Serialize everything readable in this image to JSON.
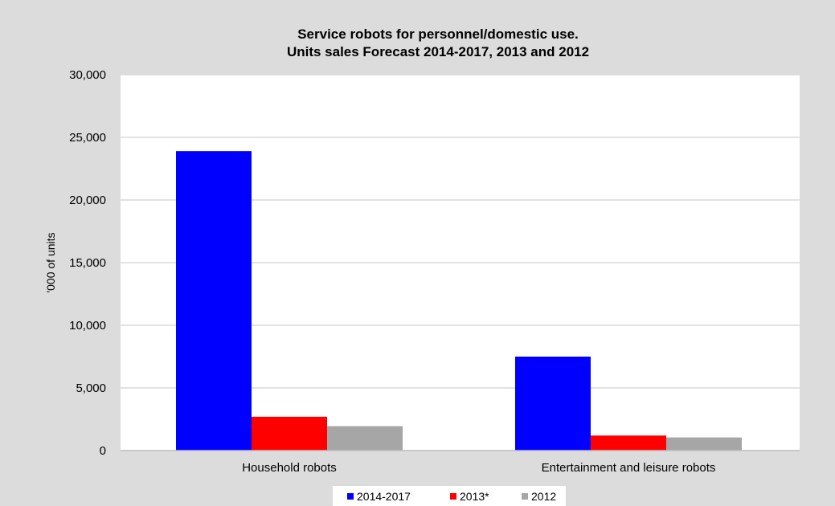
{
  "chart_data": {
    "type": "bar",
    "title": "Service robots for personnel/domestic use.",
    "subtitle": "Units sales Forecast 2014-2017, 2013 and 2012",
    "xlabel": "",
    "ylabel": "'000 of units",
    "ylim": [
      0,
      30000
    ],
    "yticks": [
      0,
      5000,
      10000,
      15000,
      20000,
      25000,
      30000
    ],
    "ytick_labels": [
      "0",
      "5,000",
      "10,000",
      "15,000",
      "20,000",
      "25,000",
      "30,000"
    ],
    "categories": [
      "Household robots",
      "Entertainment and leisure robots"
    ],
    "series": [
      {
        "name": "2014-2017",
        "color": "#0000ff",
        "values": [
          23900,
          7500
        ]
      },
      {
        "name": "2013*",
        "color": "#ff0000",
        "values": [
          2700,
          1200
        ]
      },
      {
        "name": "2012",
        "color": "#a6a6a6",
        "values": [
          1950,
          1050
        ]
      }
    ],
    "grid": true,
    "legend_position": "bottom",
    "background": "#dcdcdc",
    "plot_background": "#ffffff"
  }
}
